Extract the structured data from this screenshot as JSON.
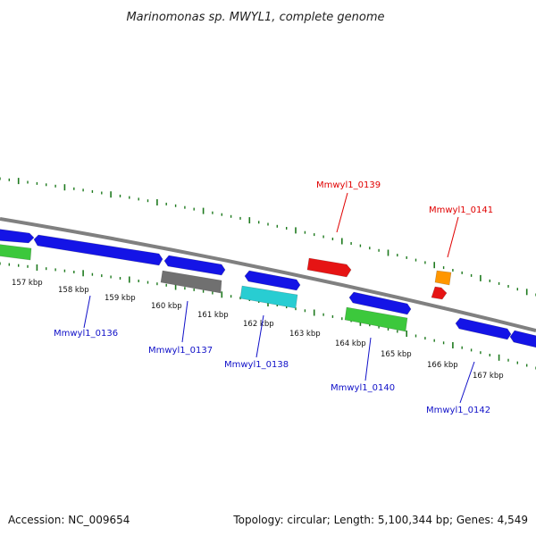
{
  "title": "Marinomonas sp. MWYL1, complete genome",
  "footer": {
    "accession": "Accession: NC_009654",
    "topology": "Topology: circular; Length: 5,100,344 bp; Genes: 4,549"
  },
  "scale": {
    "labels": [
      "157 kbp",
      "158 kbp",
      "159 kbp",
      "160 kbp",
      "161 kbp",
      "162 kbp",
      "163 kbp",
      "164 kbp",
      "165 kbp",
      "166 kbp",
      "167 kbp"
    ]
  },
  "gene_labels": [
    {
      "name": "Mmwyl1_0136",
      "color": "#1010c8"
    },
    {
      "name": "Mmwyl1_0137",
      "color": "#1010c8"
    },
    {
      "name": "Mmwyl1_0138",
      "color": "#1010c8"
    },
    {
      "name": "Mmwyl1_0139",
      "color": "#e00000"
    },
    {
      "name": "Mmwyl1_0140",
      "color": "#1010c8"
    },
    {
      "name": "Mmwyl1_0141",
      "color": "#e00000"
    },
    {
      "name": "Mmwyl1_0142",
      "color": "#1010c8"
    }
  ],
  "colors": {
    "backbone": "#808080",
    "blue": "#1414e6",
    "green": "#3cc83c",
    "gray": "#707070",
    "cyan": "#28cdd2",
    "red": "#e61414",
    "orange": "#ff9600",
    "tick": "#1e7a1e"
  }
}
